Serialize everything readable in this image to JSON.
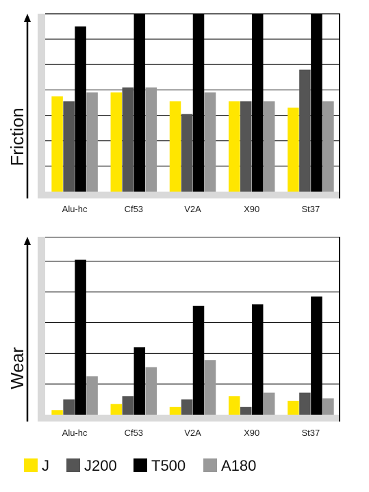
{
  "chart_data": [
    {
      "type": "bar",
      "title": "",
      "xlabel": "",
      "ylabel": "Friction",
      "ylim": [
        0,
        7
      ],
      "grid": true,
      "categories": [
        "Alu-hc",
        "Cf53",
        "V2A",
        "X90",
        "St37"
      ],
      "series": [
        {
          "name": "J",
          "values": [
            3.75,
            3.9,
            3.55,
            3.55,
            3.3
          ]
        },
        {
          "name": "J200",
          "values": [
            3.55,
            4.1,
            3.05,
            3.55,
            4.8
          ]
        },
        {
          "name": "T500",
          "values": [
            6.5,
            7.0,
            7.0,
            7.0,
            7.0
          ]
        },
        {
          "name": "A180",
          "values": [
            3.9,
            4.1,
            3.9,
            3.55,
            3.55
          ]
        }
      ]
    },
    {
      "type": "bar",
      "title": "",
      "xlabel": "",
      "ylabel": "Wear",
      "ylim": [
        0,
        5.8
      ],
      "grid": true,
      "categories": [
        "Alu-hc",
        "Cf53",
        "V2A",
        "X90",
        "St37"
      ],
      "series": [
        {
          "name": "J",
          "values": [
            0.15,
            0.35,
            0.25,
            0.6,
            0.45
          ]
        },
        {
          "name": "J200",
          "values": [
            0.5,
            0.6,
            0.5,
            0.25,
            0.72
          ]
        },
        {
          "name": "T500",
          "values": [
            5.05,
            2.2,
            3.55,
            3.6,
            3.85
          ]
        },
        {
          "name": "A180",
          "values": [
            1.25,
            1.55,
            1.78,
            0.72,
            0.53
          ]
        }
      ]
    }
  ],
  "legend": {
    "placement": "bottom",
    "items": [
      {
        "label": "J",
        "color": "#ffe600"
      },
      {
        "label": "J200",
        "color": "#555555"
      },
      {
        "label": "T500",
        "color": "#000000"
      },
      {
        "label": "A180",
        "color": "#999999"
      }
    ]
  },
  "colors": {
    "axis_band": "#d9d9d9",
    "grid": "#000000"
  }
}
